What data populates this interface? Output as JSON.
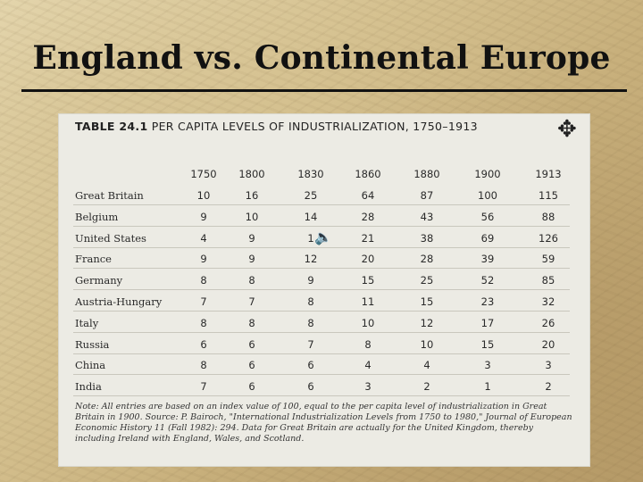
{
  "slide": {
    "title": "England vs. Continental Europe"
  },
  "table": {
    "title_number": "TABLE 24.1",
    "title_text": "PER CAPITA LEVELS OF INDUSTRIALIZATION, 1750–1913",
    "ornament_icon": "✥",
    "columns": [
      "1750",
      "1800",
      "1830",
      "1860",
      "1880",
      "1900",
      "1913"
    ],
    "rows": [
      {
        "country": "Great Britain",
        "values": [
          "10",
          "16",
          "25",
          "64",
          "87",
          "100",
          "115"
        ]
      },
      {
        "country": "Belgium",
        "values": [
          "9",
          "10",
          "14",
          "28",
          "43",
          "56",
          "88"
        ]
      },
      {
        "country": "United States",
        "values": [
          "4",
          "9",
          "1",
          "21",
          "38",
          "69",
          "126"
        ]
      },
      {
        "country": "France",
        "values": [
          "9",
          "9",
          "12",
          "20",
          "28",
          "39",
          "59"
        ]
      },
      {
        "country": "Germany",
        "values": [
          "8",
          "8",
          "9",
          "15",
          "25",
          "52",
          "85"
        ]
      },
      {
        "country": "Austria-Hungary",
        "values": [
          "7",
          "7",
          "8",
          "11",
          "15",
          "23",
          "32"
        ]
      },
      {
        "country": "Italy",
        "values": [
          "8",
          "8",
          "8",
          "10",
          "12",
          "17",
          "26"
        ]
      },
      {
        "country": "Russia",
        "values": [
          "6",
          "6",
          "7",
          "8",
          "10",
          "15",
          "20"
        ]
      },
      {
        "country": "China",
        "values": [
          "8",
          "6",
          "6",
          "4",
          "4",
          "3",
          "3"
        ]
      },
      {
        "country": "India",
        "values": [
          "7",
          "6",
          "6",
          "3",
          "2",
          "1",
          "2"
        ]
      }
    ],
    "note": "Note: All entries are based on an index value of 100, equal to the per capita level of industrialization in Great Britain in 1900. Source: P. Bairoch, \"International Industrialization Levels from 1750 to 1980,\" Journal of European Economic History 11 (Fall 1982): 294. Data for Great Britain are actually for the United Kingdom, thereby including Ireland with England, Wales, and Scotland."
  },
  "speaker_icon": "🔈"
}
